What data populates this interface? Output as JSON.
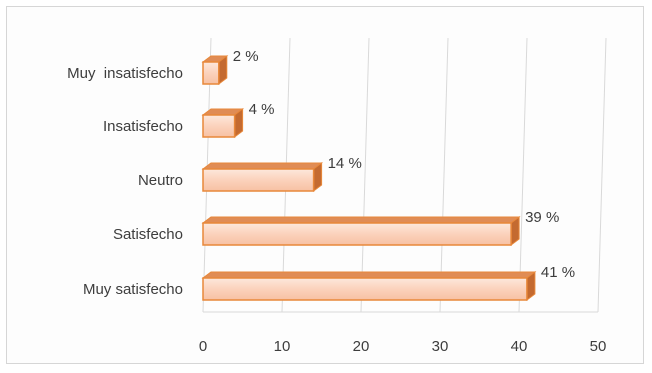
{
  "chart_data": {
    "type": "bar",
    "orientation": "horizontal",
    "style": "3d",
    "categories": [
      "Muy satisfecho",
      "Satisfecho",
      "Neutro",
      "Insatisfecho",
      "Muy  insatisfecho"
    ],
    "values": [
      41,
      39,
      14,
      4,
      2
    ],
    "data_labels": [
      "41 %",
      "39 %",
      "14 %",
      "4 %",
      "2 %"
    ],
    "x_ticks": [
      "0",
      "10",
      "20",
      "30",
      "40",
      "50"
    ],
    "xlim": [
      0,
      50
    ],
    "title": "",
    "xlabel": "",
    "ylabel": "",
    "grid": true,
    "legend": "none",
    "colors": {
      "bar_front": "#fbd6c2",
      "bar_front_light": "#fde8dc",
      "bar_top": "#e08c55",
      "bar_side": "#c46a30",
      "bar_edge": "#e8883a",
      "grid": "#d9d9d9"
    }
  }
}
